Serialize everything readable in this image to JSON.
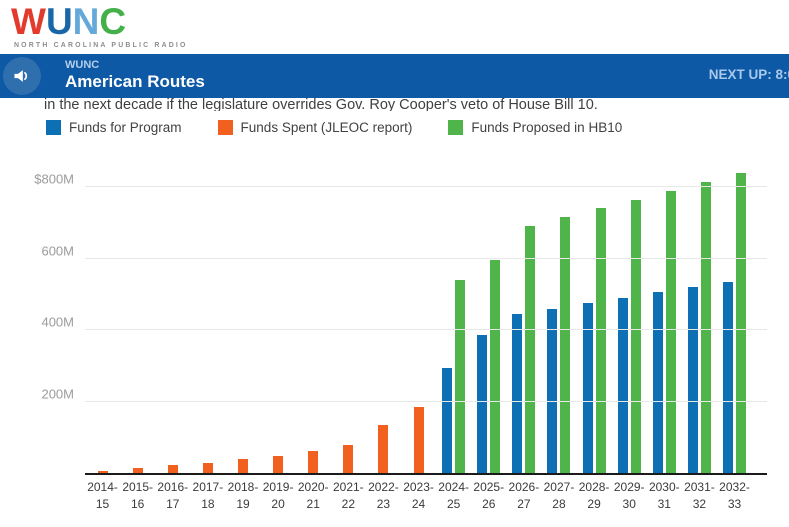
{
  "header": {
    "logo_letters": [
      {
        "char": "W",
        "color": "#e23b2e"
      },
      {
        "char": "U",
        "color": "#1a67a8"
      },
      {
        "char": "N",
        "color": "#64a9d9"
      },
      {
        "char": "C",
        "color": "#44b049"
      }
    ],
    "tagline": "NORTH CAROLINA PUBLIC RADIO"
  },
  "player_bar": {
    "station": "WUNC",
    "show_title": "American Routes",
    "next_up": "NEXT UP: 8:0",
    "bg_color": "#0d59a5",
    "button_color": "#2f6fae",
    "station_color": "#b6cfe9",
    "next_up_color": "#a9c9ec"
  },
  "article": {
    "visible_text": "in the next decade if the legislature overrides Gov. Roy Cooper's veto of House Bill 10."
  },
  "chart_data": {
    "type": "bar",
    "categories": [
      "2014-15",
      "2015-16",
      "2016-17",
      "2017-18",
      "2018-19",
      "2019-20",
      "2020-21",
      "2021-22",
      "2022-23",
      "2023-24",
      "2024-25",
      "2025-26",
      "2026-27",
      "2027-28",
      "2028-29",
      "2029-30",
      "2030-31",
      "2031-32",
      "2032-33"
    ],
    "series": [
      {
        "name": "Funds for Program",
        "color": "#0e70b4",
        "values": [
          null,
          null,
          null,
          null,
          null,
          null,
          null,
          null,
          null,
          null,
          295,
          385,
          445,
          460,
          475,
          490,
          505,
          520,
          535
        ]
      },
      {
        "name": "Funds Spent (JLEOC report)",
        "color": "#f2601f",
        "values": [
          5,
          13,
          23,
          29,
          38,
          48,
          61,
          79,
          134,
          185,
          null,
          null,
          null,
          null,
          null,
          null,
          null,
          null,
          null
        ]
      },
      {
        "name": "Funds Proposed in HB10",
        "color": "#4fb54a",
        "values": [
          null,
          null,
          null,
          null,
          null,
          null,
          null,
          null,
          null,
          null,
          540,
          595,
          690,
          715,
          740,
          765,
          790,
          815,
          840
        ]
      }
    ],
    "ytick_values": [
      200,
      400,
      600,
      800
    ],
    "ytick_labels": [
      "200M",
      "400M",
      "600M",
      "$800M"
    ],
    "ylim": [
      0,
      875
    ],
    "unit": "$ millions",
    "grid": true,
    "legend_position": "top"
  }
}
